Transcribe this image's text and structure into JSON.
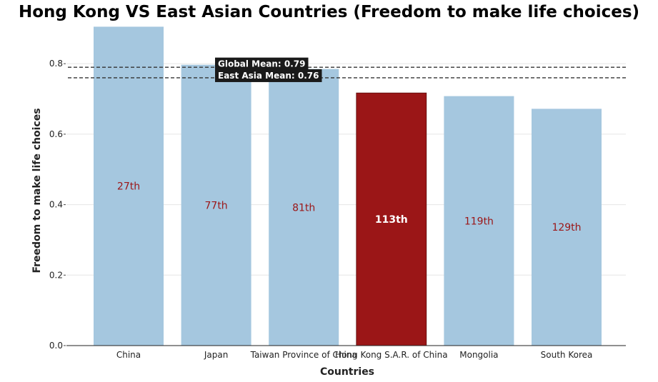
{
  "chart_data": {
    "type": "bar",
    "title": "Hong Kong VS East Asian Countries (Freedom to make life choices)",
    "xlabel": "Countries",
    "ylabel": "Freedom to make life choices",
    "categories": [
      "China",
      "Japan",
      "Taiwan Province of China",
      "Hong Kong S.A.R. of China",
      "Mongolia",
      "South Korea"
    ],
    "values": [
      0.905,
      0.797,
      0.785,
      0.717,
      0.708,
      0.672
    ],
    "rank_labels": [
      "27th",
      "77th",
      "81th",
      "113th",
      "119th",
      "129th"
    ],
    "highlight_index": 3,
    "ylim": [
      0,
      0.92
    ],
    "yticks": [
      0.0,
      0.2,
      0.4,
      0.6,
      0.8
    ],
    "ytick_labels": [
      "0.0",
      "0.2",
      "0.4",
      "0.6",
      "0.8"
    ],
    "grid": true,
    "reference_lines": [
      {
        "label": "Global Mean: 0.79",
        "value": 0.79
      },
      {
        "label": "East Asia Mean: 0.76",
        "value": 0.76
      }
    ],
    "colors": {
      "bar": "#a5c7df",
      "highlight": "#9b1617",
      "rank_text": "#9b1617",
      "highlight_rank_text": "#ffffff",
      "mean_line": "#333333",
      "label_box": "#1a1a1a"
    }
  }
}
